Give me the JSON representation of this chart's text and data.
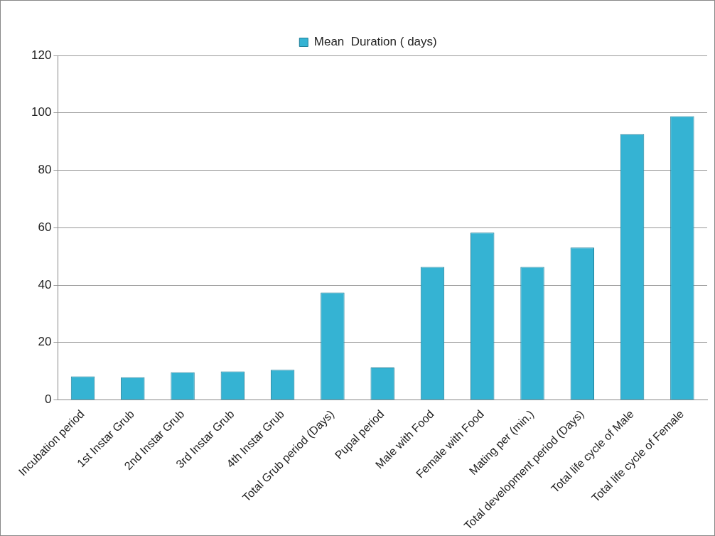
{
  "chart_data": {
    "type": "bar",
    "categories": [
      "Incubation period",
      "1st Instar Grub",
      "2nd Instar Grub",
      "3rd Instar Grub",
      "4th Instar Grub",
      "Total Grub period (Days)",
      "Pupal period",
      "Male with Food",
      "Female with Food",
      "Mating per (min.)",
      "Total development period (Days)",
      "Total life cycle of Male",
      "Total life cycle of Female"
    ],
    "series": [
      {
        "name": "Mean  Duration ( days)",
        "color": "#35b3d3",
        "values": [
          8.2,
          7.9,
          9.6,
          9.9,
          10.5,
          37.4,
          11.3,
          46.3,
          58.3,
          46.3,
          53.1,
          92.6,
          98.8
        ]
      }
    ],
    "ylim": [
      0,
      120
    ],
    "yticks": [
      0,
      20,
      40,
      60,
      80,
      100,
      120
    ],
    "grid": "y",
    "legend": "top"
  }
}
